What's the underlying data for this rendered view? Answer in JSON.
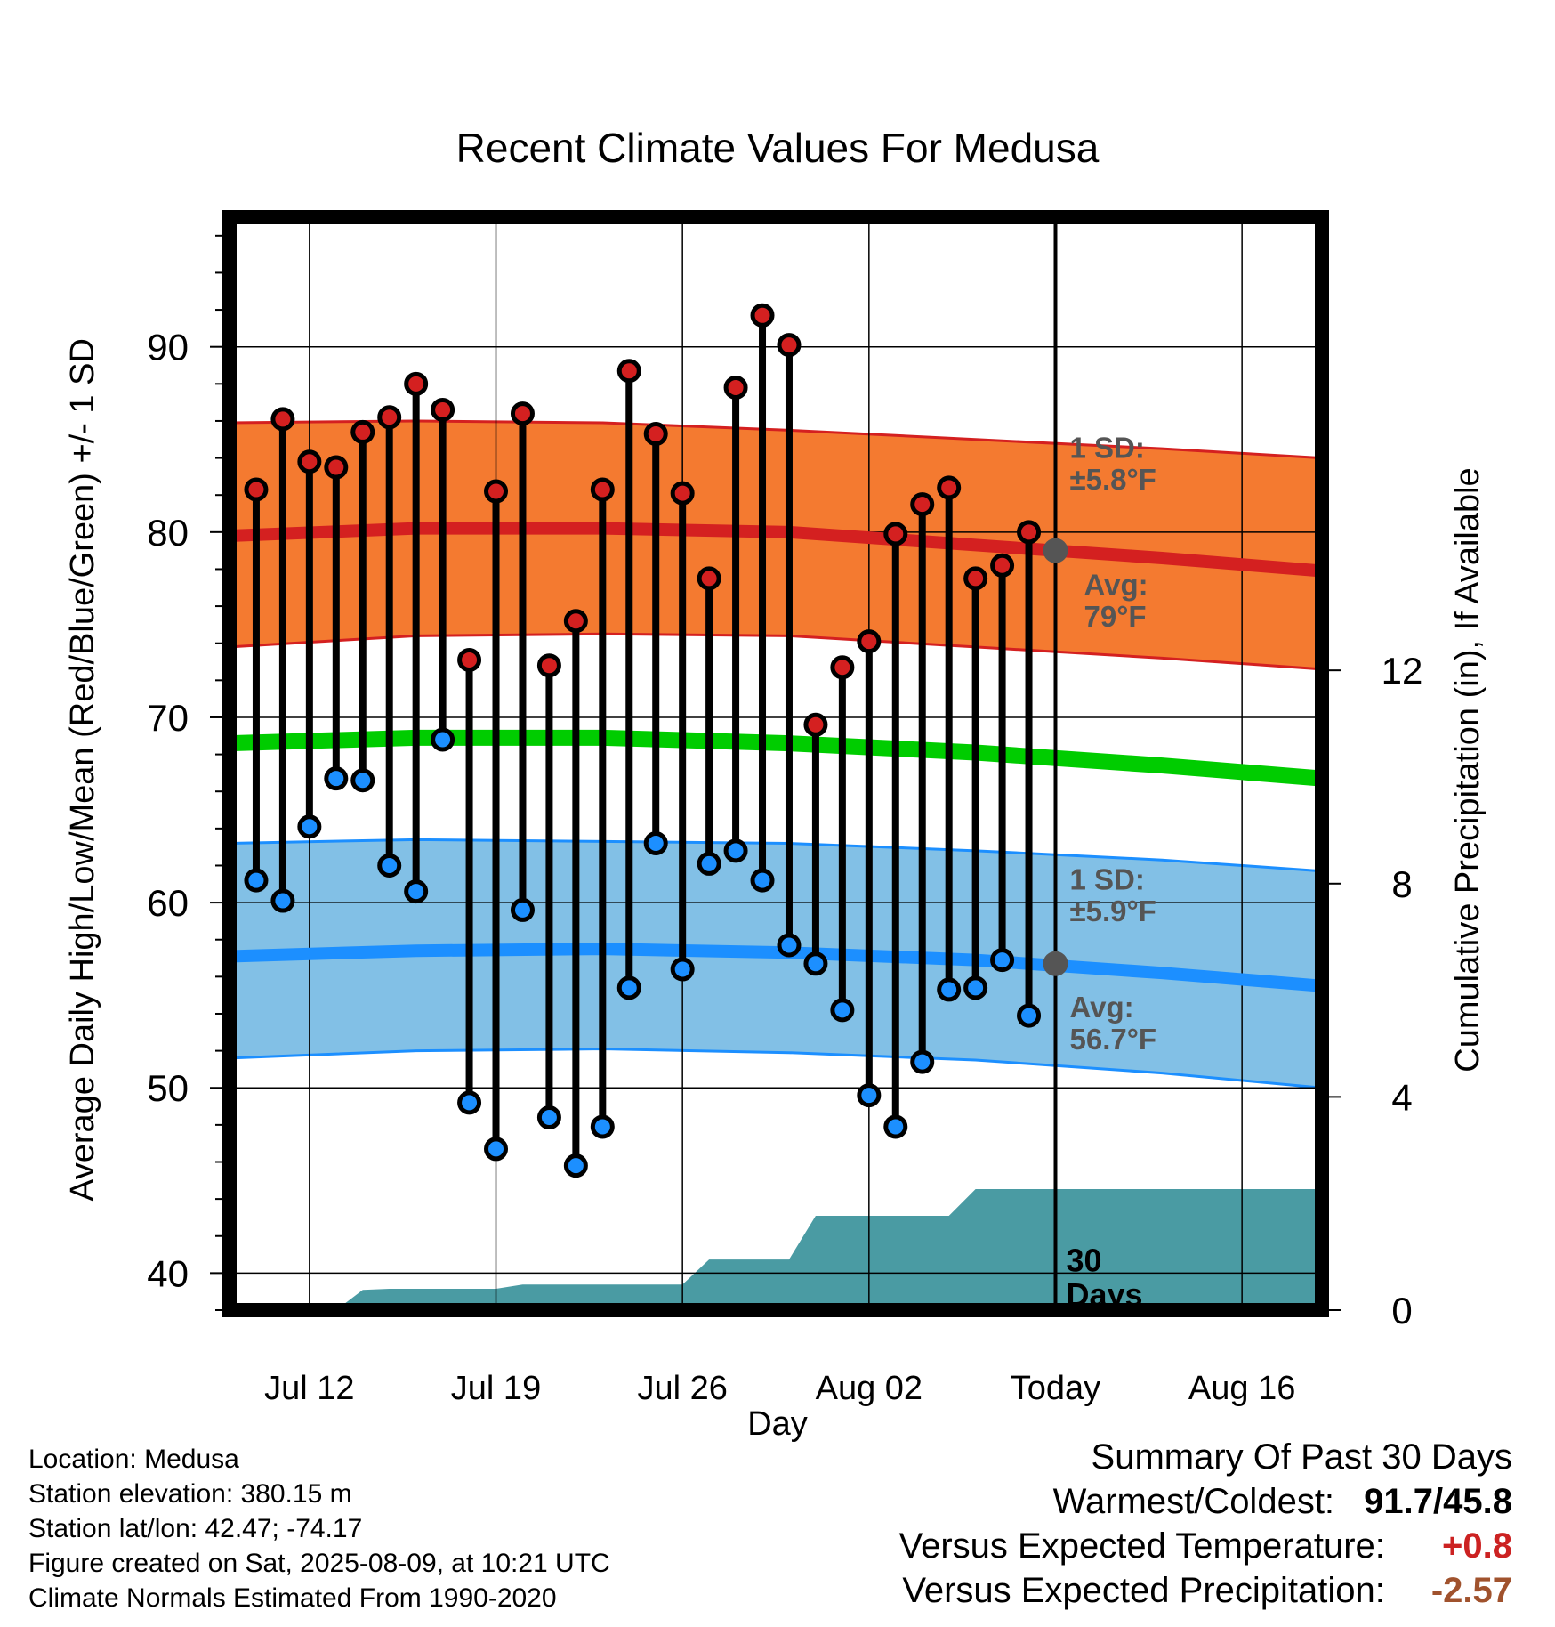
{
  "chart_data": {
    "type": "line",
    "title": "Recent Climate Values For Medusa",
    "xlabel": "Day",
    "ylabel": "Average Daily High/Low/Mean (Red/Blue/Green) +/- 1 SD",
    "y2label": "Cumulative Precipitation (in), If Available",
    "ylim": [
      38,
      97
    ],
    "y2lim": [
      0,
      20.5
    ],
    "yticks": [
      40,
      50,
      60,
      70,
      80,
      90
    ],
    "y2ticks": [
      0,
      4,
      8,
      12
    ],
    "xrange": [
      "2025-07-09",
      "2025-08-19"
    ],
    "xticks": [
      {
        "date": "2025-07-12",
        "label": "Jul 12"
      },
      {
        "date": "2025-07-19",
        "label": "Jul 19"
      },
      {
        "date": "2025-07-26",
        "label": "Jul 26"
      },
      {
        "date": "2025-08-02",
        "label": "Aug 02"
      },
      {
        "date": "2025-08-09",
        "label": "Today"
      },
      {
        "date": "2025-08-16",
        "label": "Aug 16"
      }
    ],
    "grid": true,
    "today": "2025-08-09",
    "normals": {
      "dates": [
        "2025-07-09",
        "2025-07-16",
        "2025-07-23",
        "2025-07-30",
        "2025-08-06",
        "2025-08-13",
        "2025-08-19"
      ],
      "high_mean": [
        79.8,
        80.2,
        80.2,
        80.0,
        79.3,
        78.6,
        77.9
      ],
      "high_upper": [
        85.9,
        86.0,
        85.9,
        85.5,
        85.0,
        84.5,
        84.0
      ],
      "high_lower": [
        73.8,
        74.4,
        74.5,
        74.4,
        73.8,
        73.2,
        72.6
      ],
      "mean": [
        68.6,
        68.9,
        68.9,
        68.6,
        68.1,
        67.4,
        66.7
      ],
      "low_mean": [
        57.1,
        57.4,
        57.5,
        57.3,
        56.9,
        56.2,
        55.5
      ],
      "low_upper": [
        63.2,
        63.4,
        63.3,
        63.2,
        62.8,
        62.3,
        61.7
      ],
      "low_lower": [
        51.6,
        52.0,
        52.1,
        51.9,
        51.5,
        50.8,
        50.0
      ],
      "today_high_avg": 79.0,
      "today_low_avg": 56.7,
      "high_sd_label": "1 SD:\n±5.8°F",
      "high_avg_label": "Avg:\n79°F",
      "low_sd_label": "1 SD:\n±5.9°F",
      "low_avg_label": "Avg:\n56.7°F"
    },
    "series": [
      {
        "name": "High",
        "dates": [
          "2025-07-10",
          "2025-07-11",
          "2025-07-12",
          "2025-07-13",
          "2025-07-14",
          "2025-07-15",
          "2025-07-16",
          "2025-07-17",
          "2025-07-18",
          "2025-07-19",
          "2025-07-20",
          "2025-07-21",
          "2025-07-22",
          "2025-07-23",
          "2025-07-24",
          "2025-07-25",
          "2025-07-26",
          "2025-07-27",
          "2025-07-28",
          "2025-07-29",
          "2025-07-30",
          "2025-07-31",
          "2025-08-01",
          "2025-08-02",
          "2025-08-03",
          "2025-08-04",
          "2025-08-05",
          "2025-08-06",
          "2025-08-07",
          "2025-08-08"
        ],
        "values": [
          82.3,
          86.1,
          83.8,
          83.5,
          85.4,
          86.2,
          88.0,
          86.6,
          73.1,
          82.2,
          86.4,
          72.8,
          75.2,
          82.3,
          88.7,
          85.3,
          82.1,
          77.5,
          87.8,
          91.7,
          90.1,
          69.6,
          72.7,
          74.1,
          79.9,
          81.5,
          82.4,
          77.5,
          78.2,
          80.0
        ]
      },
      {
        "name": "Low",
        "dates": [
          "2025-07-10",
          "2025-07-11",
          "2025-07-12",
          "2025-07-13",
          "2025-07-14",
          "2025-07-15",
          "2025-07-16",
          "2025-07-17",
          "2025-07-18",
          "2025-07-19",
          "2025-07-20",
          "2025-07-21",
          "2025-07-22",
          "2025-07-23",
          "2025-07-24",
          "2025-07-25",
          "2025-07-26",
          "2025-07-27",
          "2025-07-28",
          "2025-07-29",
          "2025-07-30",
          "2025-07-31",
          "2025-08-01",
          "2025-08-02",
          "2025-08-03",
          "2025-08-04",
          "2025-08-05",
          "2025-08-06",
          "2025-08-07",
          "2025-08-08"
        ],
        "values": [
          61.2,
          60.1,
          64.1,
          66.7,
          66.6,
          62.0,
          60.6,
          68.8,
          49.2,
          46.7,
          59.6,
          48.4,
          45.8,
          47.9,
          55.4,
          63.2,
          56.4,
          62.1,
          62.8,
          61.2,
          57.7,
          56.7,
          54.2,
          49.6,
          47.9,
          51.4,
          55.3,
          55.4,
          56.9,
          53.9
        ]
      }
    ],
    "precip": {
      "dates": [
        "2025-07-09",
        "2025-07-13",
        "2025-07-14",
        "2025-07-15",
        "2025-07-19",
        "2025-07-20",
        "2025-07-26",
        "2025-07-27",
        "2025-07-30",
        "2025-07-31",
        "2025-08-05",
        "2025-08-06",
        "2025-08-19"
      ],
      "values": [
        0.0,
        0.0,
        0.38,
        0.4,
        0.4,
        0.48,
        0.48,
        0.95,
        0.95,
        1.77,
        1.77,
        2.27,
        2.27
      ],
      "label": "30\nDays"
    },
    "colors": {
      "high": "#d42020",
      "high_band": "#f47a30",
      "low": "#1c8fff",
      "low_band": "#82c0e6",
      "mean": "#00cc00",
      "precip": "#4a9ba3",
      "annotation": "#555555"
    }
  },
  "info": {
    "location": "Location: Medusa",
    "elevation": "Station elevation: 380.15 m",
    "latlon": "Station lat/lon: 42.47; -74.17",
    "created": "Figure created on Sat, 2025-08-09, at 10:21 UTC",
    "normals": "Climate Normals Estimated From 1990-2020"
  },
  "summary": {
    "title": "Summary Of Past 30 Days",
    "warm_cold_label": "Warmest/Coldest:",
    "warm_cold_value": "91.7/45.8",
    "temp_label": "Versus Expected Temperature:",
    "temp_value": "+0.8",
    "temp_color": "#cc2222",
    "precip_label": "Versus Expected Precipitation:",
    "precip_value": "-2.57",
    "precip_color": "#a0522d"
  }
}
